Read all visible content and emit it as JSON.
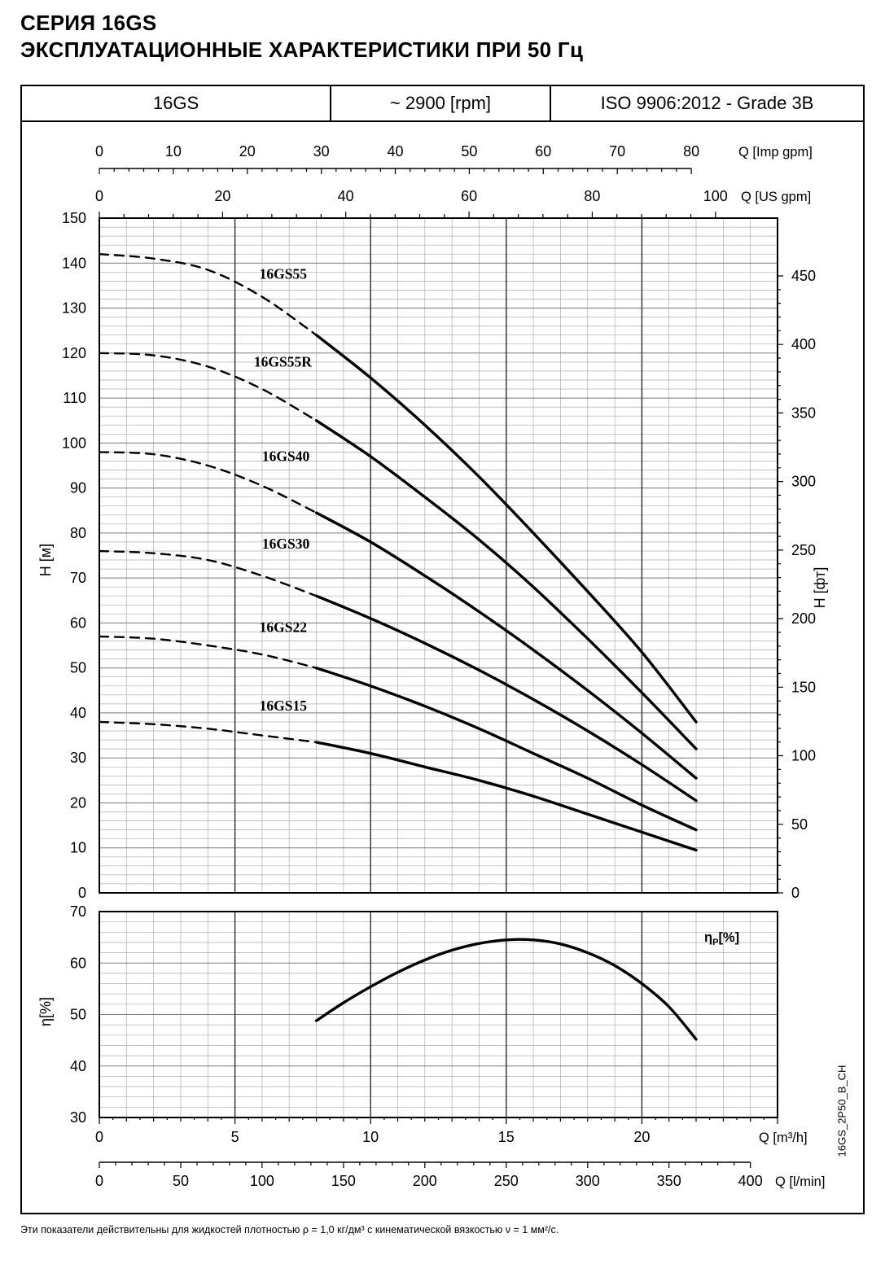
{
  "page": {
    "title_line1": "СЕРИЯ 16GS",
    "title_line2": "ЭКСПЛУАТАЦИОННЫЕ ХАРАКТЕРИСТИКИ ПРИ 50 Гц",
    "doc_code": "16GS_2P50_B_CH",
    "footer_note": "Эти показатели действительны для жидкостей плотностью ρ = 1,0 кг/дм³ с кинематической вязкостью ν = 1 мм²/с."
  },
  "header": {
    "model": "16GS",
    "speed": "~ 2900 [rpm]",
    "standard": "ISO 9906:2012 - Grade 3B"
  },
  "chart_data": [
    {
      "type": "line",
      "title": "Q-H performance curves",
      "xlabel": "Q [m³/h]",
      "x_range_m3h": [
        0,
        25
      ],
      "ylabel_left": "H [м]",
      "y_range_m": [
        0,
        150
      ],
      "y_ticks_m": [
        0,
        10,
        20,
        30,
        40,
        50,
        60,
        70,
        80,
        90,
        100,
        110,
        120,
        130,
        140,
        150
      ],
      "ylabel_right": "H [фт]",
      "y_ticks_ft": [
        0,
        50,
        100,
        150,
        200,
        250,
        300,
        350,
        400,
        450
      ],
      "ft_per_m": 3.2808,
      "top_axis_imp_gpm": {
        "label": "Q [Imp gpm]",
        "ticks": [
          0,
          10,
          20,
          30,
          40,
          50,
          60,
          70,
          80
        ],
        "m3h_per_unit": 0.272765
      },
      "top_axis_us_gpm": {
        "label": "Q [US gpm]",
        "ticks": [
          0,
          20,
          40,
          60,
          80,
          100
        ],
        "m3h_per_unit": 0.227125
      },
      "dashed_below_q": 8,
      "series": [
        {
          "name": "16GS55",
          "label_at": [
            5.9,
            136.5
          ],
          "points": [
            [
              0,
              142
            ],
            [
              2,
              141
            ],
            [
              4,
              138.5
            ],
            [
              6,
              132.5
            ],
            [
              8,
              124
            ],
            [
              10,
              114.5
            ],
            [
              12,
              104
            ],
            [
              14,
              92.5
            ],
            [
              16,
              80
            ],
            [
              18,
              67
            ],
            [
              20,
              53.5
            ],
            [
              22,
              38
            ]
          ]
        },
        {
          "name": "16GS55R",
          "label_at": [
            5.7,
            117
          ],
          "points": [
            [
              0,
              120
            ],
            [
              2,
              119.5
            ],
            [
              4,
              117
            ],
            [
              6,
              112
            ],
            [
              8,
              105
            ],
            [
              10,
              97
            ],
            [
              12,
              88
            ],
            [
              14,
              78.5
            ],
            [
              16,
              68
            ],
            [
              18,
              56.5
            ],
            [
              20,
              44.5
            ],
            [
              22,
              32
            ]
          ]
        },
        {
          "name": "16GS40",
          "label_at": [
            6.0,
            96
          ],
          "points": [
            [
              0,
              98
            ],
            [
              2,
              97.5
            ],
            [
              4,
              95
            ],
            [
              6,
              90.5
            ],
            [
              8,
              84.5
            ],
            [
              10,
              78
            ],
            [
              12,
              70.5
            ],
            [
              14,
              62.5
            ],
            [
              16,
              54
            ],
            [
              18,
              45
            ],
            [
              20,
              35.5
            ],
            [
              22,
              25.5
            ]
          ]
        },
        {
          "name": "16GS30",
          "label_at": [
            6.0,
            76.5
          ],
          "points": [
            [
              0,
              76
            ],
            [
              2,
              75.5
            ],
            [
              4,
              74
            ],
            [
              6,
              70.5
            ],
            [
              8,
              66
            ],
            [
              10,
              61
            ],
            [
              12,
              55.5
            ],
            [
              14,
              49.5
            ],
            [
              16,
              43
            ],
            [
              18,
              36
            ],
            [
              20,
              28.5
            ],
            [
              22,
              20.5
            ]
          ]
        },
        {
          "name": "16GS22",
          "label_at": [
            5.9,
            58
          ],
          "points": [
            [
              0,
              57
            ],
            [
              2,
              56.5
            ],
            [
              4,
              55
            ],
            [
              6,
              53
            ],
            [
              8,
              50
            ],
            [
              10,
              46
            ],
            [
              12,
              41.5
            ],
            [
              14,
              36.5
            ],
            [
              16,
              31
            ],
            [
              18,
              25.5
            ],
            [
              20,
              19.5
            ],
            [
              22,
              14
            ]
          ]
        },
        {
          "name": "16GS15",
          "label_at": [
            5.9,
            40.5
          ],
          "points": [
            [
              0,
              38
            ],
            [
              2,
              37.5
            ],
            [
              4,
              36.5
            ],
            [
              6,
              35
            ],
            [
              8,
              33.5
            ],
            [
              10,
              31
            ],
            [
              12,
              28
            ],
            [
              14,
              25
            ],
            [
              16,
              21.5
            ],
            [
              18,
              17.5
            ],
            [
              20,
              13.5
            ],
            [
              22,
              9.5
            ]
          ]
        }
      ]
    },
    {
      "type": "line",
      "title": "Efficiency curve",
      "ylabel": "η[%]",
      "y_range": [
        30,
        70
      ],
      "y_ticks": [
        30,
        40,
        50,
        60,
        70
      ],
      "legend_parts": [
        "η",
        "P",
        "[%]"
      ],
      "bottom_axis_m3h": {
        "label": "Q [m³/h]",
        "ticks": [
          0,
          5,
          10,
          15,
          20
        ]
      },
      "bottom_axis_lmin": {
        "label": "Q [l/min]",
        "ticks": [
          0,
          50,
          100,
          150,
          200,
          250,
          300,
          350,
          400
        ],
        "m3h_per_unit": 0.06
      },
      "series": [
        {
          "name": "ηP",
          "points": [
            [
              8,
              48.8
            ],
            [
              9,
              52.3
            ],
            [
              10,
              55.4
            ],
            [
              11,
              58.2
            ],
            [
              12,
              60.6
            ],
            [
              13,
              62.5
            ],
            [
              14,
              63.8
            ],
            [
              15,
              64.5
            ],
            [
              16,
              64.5
            ],
            [
              17,
              63.7
            ],
            [
              18,
              62
            ],
            [
              19,
              59.5
            ],
            [
              20,
              56
            ],
            [
              21,
              51.5
            ],
            [
              22,
              45.2
            ]
          ]
        }
      ]
    }
  ]
}
